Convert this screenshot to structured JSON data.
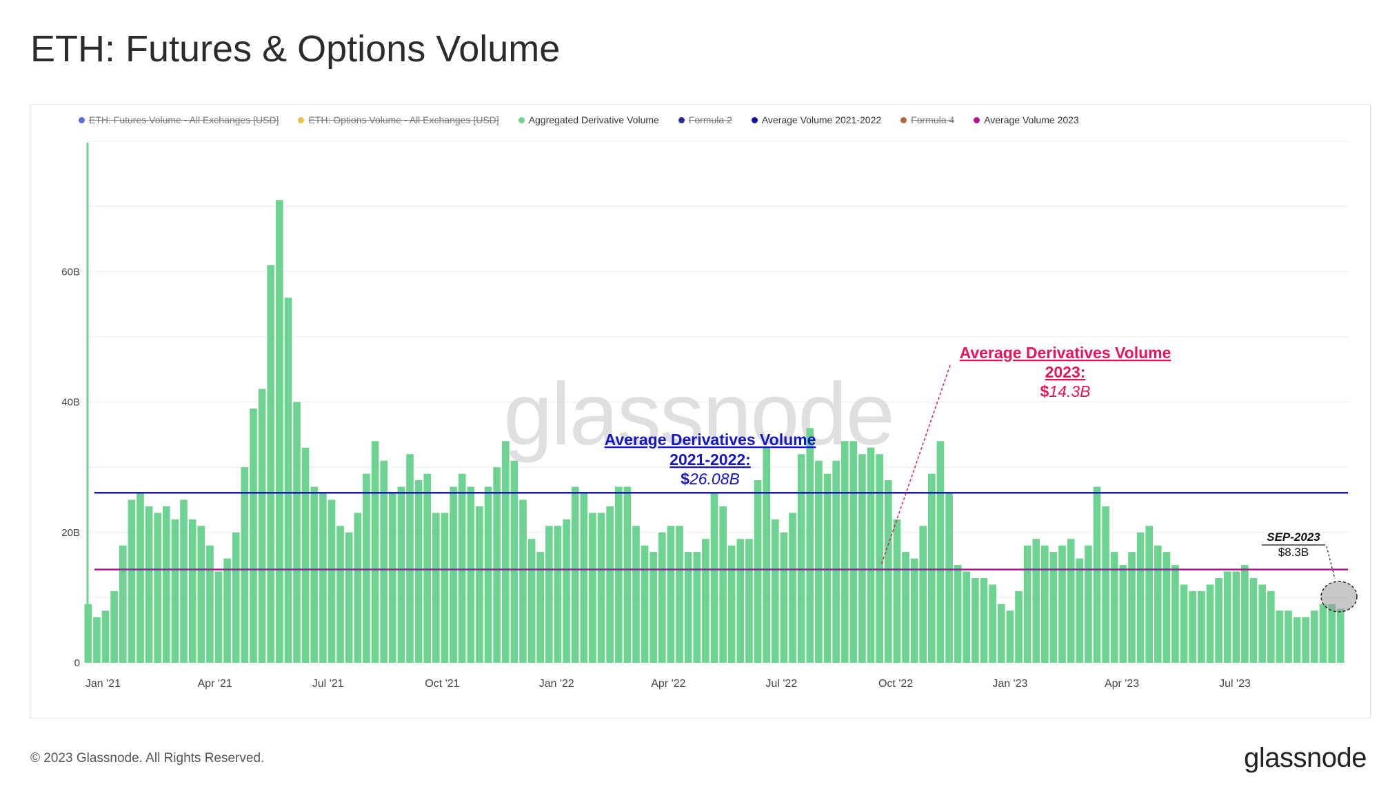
{
  "page": {
    "title": "ETH: Futures & Options Volume",
    "copyright": "© 2023 Glassnode. All Rights Reserved.",
    "logo_text": "glassnode",
    "watermark": "glassnode"
  },
  "legend": [
    {
      "label": "ETH: Futures Volume - All Exchanges [USD]",
      "color": "#5b6fd8",
      "active": false
    },
    {
      "label": "ETH: Options Volume - All Exchanges [USD]",
      "color": "#e7c14b",
      "active": false
    },
    {
      "label": "Aggregated Derivative Volume",
      "color": "#6cd391",
      "active": true
    },
    {
      "label": "Formula 2",
      "color": "#2a2a9c",
      "active": false
    },
    {
      "label": "Average Volume 2021-2022",
      "color": "#1010a8",
      "active": true
    },
    {
      "label": "Formula 4",
      "color": "#b06a3a",
      "active": false
    },
    {
      "label": "Average Volume 2023",
      "color": "#b5128e",
      "active": true
    }
  ],
  "annotations": {
    "avg_2021_2022": {
      "line1": "Average Derivatives Volume",
      "line2": "2021-2022:",
      "value_prefix": "$",
      "value": "26.08B",
      "color": "#1515c8"
    },
    "avg_2023": {
      "line1": "Average Derivatives Volume",
      "line2": "2023:",
      "value_prefix": "$",
      "value": "14.3B",
      "color": "#e8145a"
    },
    "sep_2023": {
      "line1": "SEP-2023",
      "line2": "$8.3B"
    }
  },
  "colors": {
    "bar": "#6cd391",
    "avg_2021_2022_line": "#1a1aa6",
    "avg_2023_line": "#b5128e",
    "grid": "#ececec"
  },
  "chart_data": {
    "type": "bar",
    "title": "ETH: Futures & Options Volume",
    "x_range": [
      "2020-12-19",
      "2023-09-30"
    ],
    "ylim": [
      0,
      80
    ],
    "y_unit": "B USD",
    "y_ticks": [
      {
        "value": 0,
        "label": "0"
      },
      {
        "value": 20,
        "label": "20B"
      },
      {
        "value": 40,
        "label": "40B"
      },
      {
        "value": 60,
        "label": "60B"
      }
    ],
    "x_ticks": [
      {
        "date": "2021-01-01",
        "label": "Jan '21"
      },
      {
        "date": "2021-04-01",
        "label": "Apr '21"
      },
      {
        "date": "2021-07-01",
        "label": "Jul '21"
      },
      {
        "date": "2021-10-01",
        "label": "Oct '21"
      },
      {
        "date": "2022-01-01",
        "label": "Jan '22"
      },
      {
        "date": "2022-04-01",
        "label": "Apr '22"
      },
      {
        "date": "2022-07-01",
        "label": "Jul '22"
      },
      {
        "date": "2022-10-01",
        "label": "Oct '22"
      },
      {
        "date": "2023-01-01",
        "label": "Jan '23"
      },
      {
        "date": "2023-04-01",
        "label": "Apr '23"
      },
      {
        "date": "2023-07-01",
        "label": "Jul '23"
      }
    ],
    "series": [
      {
        "name": "Aggregated Derivative Volume",
        "values": [
          [
            "2020-12-20",
            9
          ],
          [
            "2020-12-27",
            7
          ],
          [
            "2021-01-03",
            8
          ],
          [
            "2021-01-10",
            11
          ],
          [
            "2021-01-17",
            18
          ],
          [
            "2021-01-24",
            25
          ],
          [
            "2021-01-31",
            26
          ],
          [
            "2021-02-07",
            24
          ],
          [
            "2021-02-14",
            23
          ],
          [
            "2021-02-21",
            24
          ],
          [
            "2021-02-28",
            22
          ],
          [
            "2021-03-07",
            25
          ],
          [
            "2021-03-14",
            22
          ],
          [
            "2021-03-21",
            21
          ],
          [
            "2021-03-28",
            18
          ],
          [
            "2021-04-04",
            14
          ],
          [
            "2021-04-11",
            16
          ],
          [
            "2021-04-18",
            20
          ],
          [
            "2021-04-25",
            30
          ],
          [
            "2021-05-02",
            39
          ],
          [
            "2021-05-09",
            42
          ],
          [
            "2021-05-16",
            61
          ],
          [
            "2021-05-23",
            71
          ],
          [
            "2021-05-30",
            56
          ],
          [
            "2021-06-06",
            40
          ],
          [
            "2021-06-13",
            33
          ],
          [
            "2021-06-20",
            27
          ],
          [
            "2021-06-27",
            26
          ],
          [
            "2021-07-04",
            25
          ],
          [
            "2021-07-11",
            21
          ],
          [
            "2021-07-18",
            20
          ],
          [
            "2021-07-25",
            23
          ],
          [
            "2021-08-01",
            29
          ],
          [
            "2021-08-08",
            34
          ],
          [
            "2021-08-15",
            31
          ],
          [
            "2021-08-22",
            26
          ],
          [
            "2021-08-29",
            27
          ],
          [
            "2021-09-05",
            32
          ],
          [
            "2021-09-12",
            28
          ],
          [
            "2021-09-19",
            29
          ],
          [
            "2021-09-26",
            23
          ],
          [
            "2021-10-03",
            23
          ],
          [
            "2021-10-10",
            27
          ],
          [
            "2021-10-17",
            29
          ],
          [
            "2021-10-24",
            27
          ],
          [
            "2021-10-31",
            24
          ],
          [
            "2021-11-07",
            27
          ],
          [
            "2021-11-14",
            30
          ],
          [
            "2021-11-21",
            34
          ],
          [
            "2021-11-28",
            31
          ],
          [
            "2021-12-05",
            25
          ],
          [
            "2021-12-12",
            19
          ],
          [
            "2021-12-19",
            17
          ],
          [
            "2021-12-26",
            21
          ],
          [
            "2022-01-02",
            21
          ],
          [
            "2022-01-09",
            22
          ],
          [
            "2022-01-16",
            27
          ],
          [
            "2022-01-23",
            26
          ],
          [
            "2022-01-30",
            23
          ],
          [
            "2022-02-06",
            23
          ],
          [
            "2022-02-13",
            24
          ],
          [
            "2022-02-20",
            27
          ],
          [
            "2022-02-27",
            27
          ],
          [
            "2022-03-06",
            21
          ],
          [
            "2022-03-13",
            18
          ],
          [
            "2022-03-20",
            17
          ],
          [
            "2022-03-27",
            20
          ],
          [
            "2022-04-03",
            21
          ],
          [
            "2022-04-10",
            21
          ],
          [
            "2022-04-17",
            17
          ],
          [
            "2022-04-24",
            17
          ],
          [
            "2022-05-01",
            19
          ],
          [
            "2022-05-08",
            26
          ],
          [
            "2022-05-15",
            24
          ],
          [
            "2022-05-22",
            18
          ],
          [
            "2022-05-29",
            19
          ],
          [
            "2022-06-05",
            19
          ],
          [
            "2022-06-12",
            28
          ],
          [
            "2022-06-19",
            33
          ],
          [
            "2022-06-26",
            22
          ],
          [
            "2022-07-03",
            20
          ],
          [
            "2022-07-10",
            23
          ],
          [
            "2022-07-17",
            32
          ],
          [
            "2022-07-24",
            36
          ],
          [
            "2022-07-31",
            31
          ],
          [
            "2022-08-07",
            29
          ],
          [
            "2022-08-14",
            31
          ],
          [
            "2022-08-21",
            34
          ],
          [
            "2022-08-28",
            34
          ],
          [
            "2022-09-04",
            32
          ],
          [
            "2022-09-11",
            33
          ],
          [
            "2022-09-18",
            32
          ],
          [
            "2022-09-25",
            28
          ],
          [
            "2022-10-02",
            22
          ],
          [
            "2022-10-09",
            17
          ],
          [
            "2022-10-16",
            16
          ],
          [
            "2022-10-23",
            21
          ],
          [
            "2022-10-30",
            29
          ],
          [
            "2022-11-06",
            34
          ],
          [
            "2022-11-13",
            26
          ],
          [
            "2022-11-20",
            15
          ],
          [
            "2022-11-27",
            14
          ],
          [
            "2022-12-04",
            13
          ],
          [
            "2022-12-11",
            13
          ],
          [
            "2022-12-18",
            12
          ],
          [
            "2022-12-25",
            9
          ],
          [
            "2023-01-01",
            8
          ],
          [
            "2023-01-08",
            11
          ],
          [
            "2023-01-15",
            18
          ],
          [
            "2023-01-22",
            19
          ],
          [
            "2023-01-29",
            18
          ],
          [
            "2023-02-05",
            17
          ],
          [
            "2023-02-12",
            18
          ],
          [
            "2023-02-19",
            19
          ],
          [
            "2023-02-26",
            16
          ],
          [
            "2023-03-05",
            18
          ],
          [
            "2023-03-12",
            27
          ],
          [
            "2023-03-19",
            24
          ],
          [
            "2023-03-26",
            17
          ],
          [
            "2023-04-02",
            15
          ],
          [
            "2023-04-09",
            17
          ],
          [
            "2023-04-16",
            20
          ],
          [
            "2023-04-23",
            21
          ],
          [
            "2023-04-30",
            18
          ],
          [
            "2023-05-07",
            17
          ],
          [
            "2023-05-14",
            15
          ],
          [
            "2023-05-21",
            12
          ],
          [
            "2023-05-28",
            11
          ],
          [
            "2023-06-04",
            11
          ],
          [
            "2023-06-11",
            12
          ],
          [
            "2023-06-18",
            13
          ],
          [
            "2023-06-25",
            14
          ],
          [
            "2023-07-02",
            14
          ],
          [
            "2023-07-09",
            15
          ],
          [
            "2023-07-16",
            13
          ],
          [
            "2023-07-23",
            12
          ],
          [
            "2023-07-30",
            11
          ],
          [
            "2023-08-06",
            8
          ],
          [
            "2023-08-13",
            8
          ],
          [
            "2023-08-20",
            7
          ],
          [
            "2023-08-27",
            7
          ],
          [
            "2023-09-03",
            8
          ],
          [
            "2023-09-10",
            9
          ],
          [
            "2023-09-17",
            9
          ],
          [
            "2023-09-24",
            8.3
          ]
        ]
      },
      {
        "name": "Average Volume 2021-2022",
        "constant": 26.08
      },
      {
        "name": "Average Volume 2023",
        "constant": 14.3
      }
    ]
  }
}
